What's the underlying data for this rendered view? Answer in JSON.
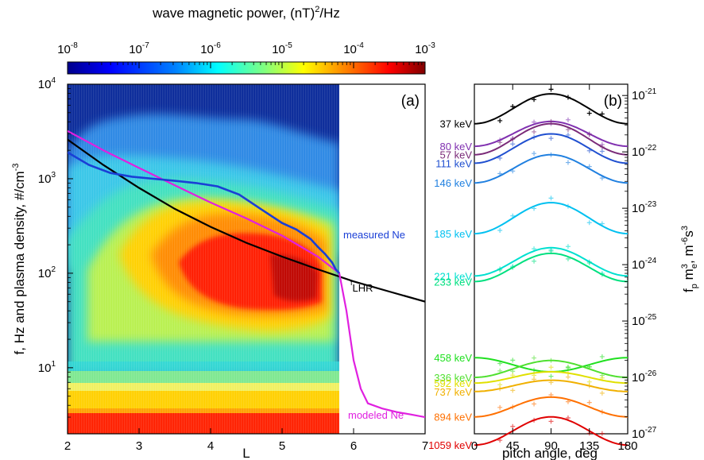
{
  "colorbar": {
    "title": "wave magnetic power, (nT)",
    "title_sup": "2",
    "title_suffix": "/Hz",
    "ticks": [
      {
        "label": "10",
        "exp": "-8",
        "value": -8
      },
      {
        "label": "10",
        "exp": "-7",
        "value": -7
      },
      {
        "label": "10",
        "exp": "-6",
        "value": -6
      },
      {
        "label": "10",
        "exp": "-5",
        "value": -5
      },
      {
        "label": "10",
        "exp": "-4",
        "value": -4
      },
      {
        "label": "10",
        "exp": "-3",
        "value": -3
      }
    ],
    "scale": "log",
    "colormap": [
      "#00008b",
      "#0000ff",
      "#0080ff",
      "#00ffff",
      "#80ff80",
      "#ffff00",
      "#ff8000",
      "#ff0000",
      "#800000"
    ]
  },
  "chart_data": [
    {
      "panel": "(a)",
      "type": "heatmap",
      "xlabel": "L",
      "ylabel": "f, Hz and plasma density, #/cm",
      "ylabel_sup": "-3",
      "xlim": [
        2,
        7
      ],
      "ylim": [
        2,
        10000
      ],
      "yscale": "log",
      "xticks": [
        "2",
        "3",
        "4",
        "5",
        "6",
        "7"
      ],
      "yticks": [
        {
          "base": "10",
          "exp": "1",
          "value": 10
        },
        {
          "base": "10",
          "exp": "2",
          "value": 100
        },
        {
          "base": "10",
          "exp": "3",
          "value": 1000
        },
        {
          "base": "10",
          "exp": "4",
          "value": 10000
        }
      ],
      "labels": {
        "measured": "measured Ne",
        "modeled": "modeled Ne",
        "flhr_main": "f",
        "flhr_sub": "LHR"
      },
      "series": [
        {
          "name": "measured Ne",
          "color": "#1a3fd6",
          "x": [
            2.0,
            2.3,
            2.6,
            2.9,
            3.2,
            3.5,
            3.8,
            4.1,
            4.4,
            4.7,
            5.0,
            5.2,
            5.4,
            5.5,
            5.6,
            5.7,
            5.75,
            5.8
          ],
          "y": [
            1900,
            1400,
            1150,
            1050,
            1000,
            950,
            900,
            830,
            680,
            480,
            340,
            290,
            230,
            190,
            160,
            130,
            110,
            100
          ]
        },
        {
          "name": "modeled Ne",
          "color": "#e020e0",
          "x": [
            2.0,
            2.5,
            3.0,
            3.5,
            4.0,
            4.5,
            5.0,
            5.5,
            5.8,
            5.9,
            6.0,
            6.1,
            6.2,
            6.4,
            6.6,
            6.8,
            7.0
          ],
          "y": [
            3200,
            2000,
            1300,
            850,
            560,
            380,
            250,
            150,
            100,
            40,
            12,
            6,
            4.2,
            3.7,
            3.4,
            3.2,
            3.0
          ]
        },
        {
          "name": "fLHR",
          "color": "#000000",
          "x": [
            2.0,
            2.5,
            3.0,
            3.5,
            4.0,
            4.5,
            5.0,
            5.5,
            6.0,
            6.5,
            7.0
          ],
          "y": [
            2600,
            1400,
            800,
            480,
            310,
            210,
            150,
            110,
            82,
            64,
            50
          ]
        }
      ],
      "heatmap_summary": {
        "L_range": [
          2.0,
          5.8
        ],
        "freq_range": [
          2,
          10000
        ],
        "peak_power_region": {
          "L": [
            3.3,
            5.6
          ],
          "f": [
            30,
            400
          ],
          "power": 0.001
        }
      }
    },
    {
      "panel": "(b)",
      "type": "line",
      "xlabel": "pitch angle, deg",
      "ylabel": "f",
      "ylabel_parts": {
        "a": "f",
        "a_sub": "p",
        "b": " m",
        "b_sup": "3",
        "b_sub": "e",
        "c": ", m",
        "c_sup": "-6",
        "d": "s",
        "d_sup": "3"
      },
      "xlim": [
        0,
        180
      ],
      "xticks": [
        "0",
        "45",
        "90",
        "135",
        "180"
      ],
      "yscale": "log",
      "ylim": [
        1e-27,
        1.58e-21
      ],
      "yticks": [
        {
          "base": "10",
          "exp": "-21",
          "value": -21
        },
        {
          "base": "10",
          "exp": "-22",
          "value": -22
        },
        {
          "base": "10",
          "exp": "-23",
          "value": -23
        },
        {
          "base": "10",
          "exp": "-24",
          "value": -24
        },
        {
          "base": "10",
          "exp": "-25",
          "value": -25
        },
        {
          "base": "10",
          "exp": "-26",
          "value": -26
        },
        {
          "base": "10",
          "exp": "-27",
          "value": -27
        }
      ],
      "series": [
        {
          "name": "37 keV",
          "color": "#000000",
          "peak": -20.97,
          "edge": -21.5
        },
        {
          "name": "80 keV",
          "color": "#8030b0",
          "peak": -21.46,
          "edge": -21.9
        },
        {
          "name": "57 keV",
          "color": "#7a2a78",
          "peak": -21.5,
          "edge": -22.05
        },
        {
          "name": "111 keV",
          "color": "#2050d0",
          "peak": -21.68,
          "edge": -22.2
        },
        {
          "name": "146 keV",
          "color": "#2080e0",
          "peak": -22.05,
          "edge": -22.55
        },
        {
          "name": "185 keV",
          "color": "#00c0f0",
          "peak": -22.9,
          "edge": -23.45
        },
        {
          "name": "221 keV",
          "color": "#00e0d0",
          "peak": -23.7,
          "edge": -24.2
        },
        {
          "name": "233 keV",
          "color": "#00e080",
          "peak": -23.8,
          "edge": -24.3
        },
        {
          "name": "458 keV",
          "color": "#20e020",
          "peak": -25.9,
          "edge": -25.65
        },
        {
          "name": "336 keV",
          "color": "#50e030",
          "peak": -25.7,
          "edge": -26.0
        },
        {
          "name": "592 keV",
          "color": "#e0e000",
          "peak": -25.9,
          "edge": -26.1
        },
        {
          "name": "737 keV",
          "color": "#f0b000",
          "peak": -26.05,
          "edge": -26.25
        },
        {
          "name": "894 keV",
          "color": "#ff7000",
          "peak": -26.35,
          "edge": -26.7
        },
        {
          "name": "1059 keV",
          "color": "#e00000",
          "peak": -26.7,
          "edge": -27.2
        }
      ]
    }
  ]
}
